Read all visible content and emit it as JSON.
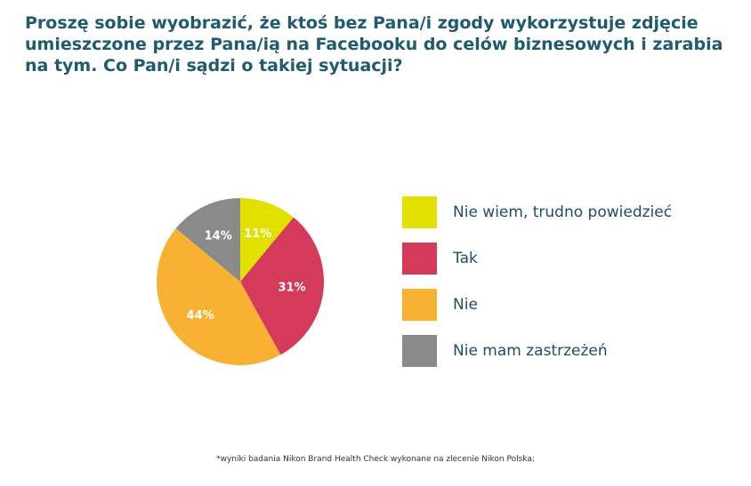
{
  "title": "Proszę sobie wyobrazić, że ktoś bez Pana/i zgody wykorzystuje zdjęcie umieszczone przez Pana/ią na Facebooku do celów biznesowych i zarabia na tym. Co Pan/i sądzi o takiej sytuacji?",
  "footnote": "*wyniki badania Nikon Brand Health Check wykonane na zlecenie Nikon Polska;",
  "chart_data": {
    "type": "pie",
    "title": "Proszę sobie wyobrazić, że ktoś bez Pana/i zgody wykorzystuje zdjęcie umieszczone przez Pana/ią na Facebooku do celów biznesowych i zarabia na tym. Co Pan/i sądzi o takiej sytuacji?",
    "legend_position": "right",
    "slices": [
      {
        "name": "Nie wiem, trudno powiedzieć",
        "value": 11,
        "label": "11%",
        "color": "#e1e000"
      },
      {
        "name": "Tak",
        "value": 31,
        "label": "31%",
        "color": "#d63a5a"
      },
      {
        "name": "Nie",
        "value": 44,
        "label": "44%",
        "color": "#f8b133"
      },
      {
        "name": "Nie mam zastrzeżeń",
        "value": 14,
        "label": "14%",
        "color": "#8a8a8a"
      }
    ]
  }
}
